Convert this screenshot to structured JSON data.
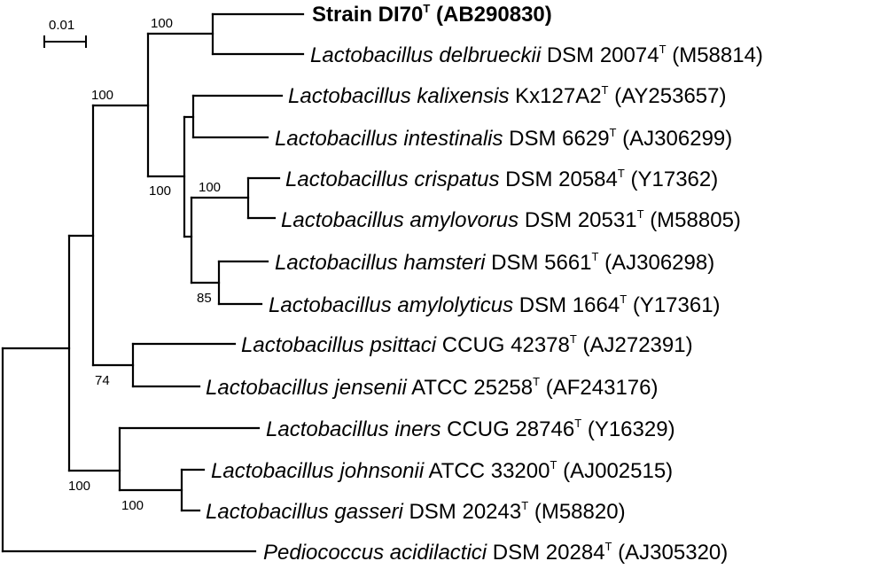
{
  "scale": {
    "label": "0.01"
  },
  "taxa": [
    {
      "id": "t0",
      "genus": "",
      "species": "",
      "rest": "Strain DI70",
      "type_mark": "T",
      "accession": "(AB290830)",
      "bold": true
    },
    {
      "id": "t1",
      "genus": "Lactobacillus",
      "species": "delbrueckii",
      "rest": "DSM 20074",
      "type_mark": "T",
      "accession": "(M58814)"
    },
    {
      "id": "t2",
      "genus": "Lactobacillus",
      "species": "kalixensis",
      "rest": "Kx127A2",
      "type_mark": "T",
      "accession": "(AY253657)"
    },
    {
      "id": "t3",
      "genus": "Lactobacillus",
      "species": "intestinalis",
      "rest": "DSM 6629",
      "type_mark": "T",
      "accession": "(AJ306299)"
    },
    {
      "id": "t4",
      "genus": "Lactobacillus",
      "species": "crispatus",
      "rest": "DSM 20584",
      "type_mark": "T",
      "accession": "(Y17362)"
    },
    {
      "id": "t5",
      "genus": "Lactobacillus",
      "species": "amylovorus",
      "rest": "DSM 20531",
      "type_mark": "T",
      "accession": "(M58805)"
    },
    {
      "id": "t6",
      "genus": "Lactobacillus",
      "species": "hamsteri",
      "rest": "DSM 5661",
      "type_mark": "T",
      "accession": "(AJ306298)"
    },
    {
      "id": "t7",
      "genus": "Lactobacillus",
      "species": "amylolyticus",
      "rest": "DSM 1664",
      "type_mark": "T",
      "accession": "(Y17361)"
    },
    {
      "id": "t8",
      "genus": "Lactobacillus",
      "species": "psittaci",
      "rest": "CCUG 42378",
      "type_mark": "T",
      "accession": "(AJ272391)"
    },
    {
      "id": "t9",
      "genus": "Lactobacillus",
      "species": "jensenii",
      "rest": "ATCC 25258",
      "type_mark": "T",
      "accession": "(AF243176)"
    },
    {
      "id": "t10",
      "genus": "Lactobacillus",
      "species": "iners",
      "rest": "CCUG 28746",
      "type_mark": "T",
      "accession": "(Y16329)"
    },
    {
      "id": "t11",
      "genus": "Lactobacillus",
      "species": "johnsonii",
      "rest": "ATCC 33200",
      "type_mark": "T",
      "accession": "(AJ002515)"
    },
    {
      "id": "t12",
      "genus": "Lactobacillus",
      "species": "gasseri",
      "rest": "DSM 20243",
      "type_mark": "T",
      "accession": "(M58820)"
    },
    {
      "id": "t13",
      "genus": "Pediococcus",
      "species": "acidilactici",
      "rest": "DSM 20284",
      "type_mark": "T",
      "accession": "(AJ305320)"
    }
  ],
  "bootstrap": [
    {
      "node": "n-di70-delbrueckii",
      "value": "100"
    },
    {
      "node": "n-delbrueckii-group",
      "value": "100"
    },
    {
      "node": "n-kalixensis-group",
      "value": "100"
    },
    {
      "node": "n-crispatus-amylovorus",
      "value": "100"
    },
    {
      "node": "n-hamsteri-amylolyticus",
      "value": "85"
    },
    {
      "node": "n-psittaci-jensenii",
      "value": "74"
    },
    {
      "node": "n-iners-group",
      "value": "100"
    },
    {
      "node": "n-johnsonii-gasseri",
      "value": "100"
    }
  ]
}
